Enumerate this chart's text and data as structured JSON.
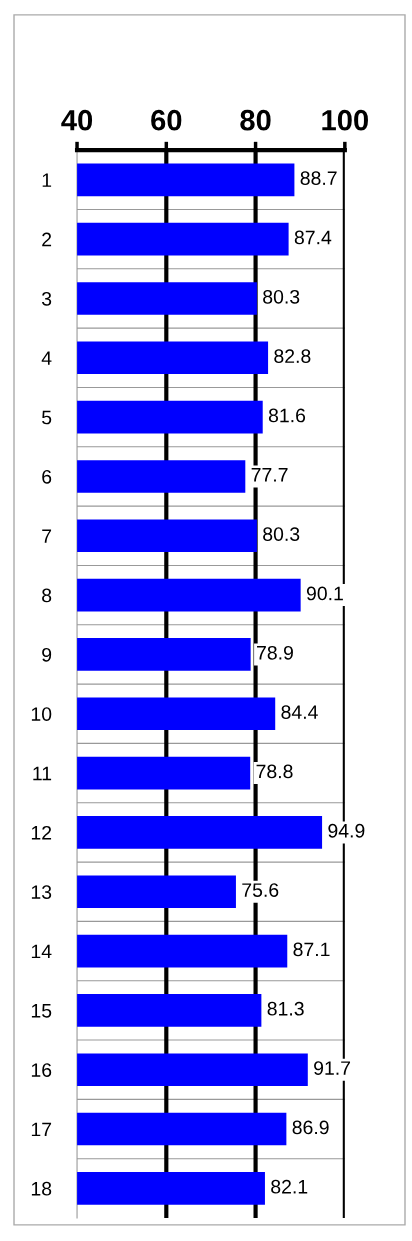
{
  "chart_data": {
    "type": "bar",
    "orientation": "horizontal",
    "categories": [
      "1",
      "2",
      "3",
      "4",
      "5",
      "6",
      "7",
      "8",
      "9",
      "10",
      "11",
      "12",
      "13",
      "14",
      "15",
      "16",
      "17",
      "18"
    ],
    "values": [
      88.7,
      87.4,
      80.3,
      82.8,
      81.6,
      77.7,
      80.3,
      90.1,
      78.9,
      84.4,
      78.8,
      94.9,
      75.6,
      87.1,
      81.3,
      91.7,
      86.9,
      82.1
    ],
    "color": "#0000ff",
    "xlim": [
      40,
      100
    ],
    "xticks": [
      40,
      60,
      80,
      100
    ],
    "grid": "x",
    "data_labels": true
  }
}
